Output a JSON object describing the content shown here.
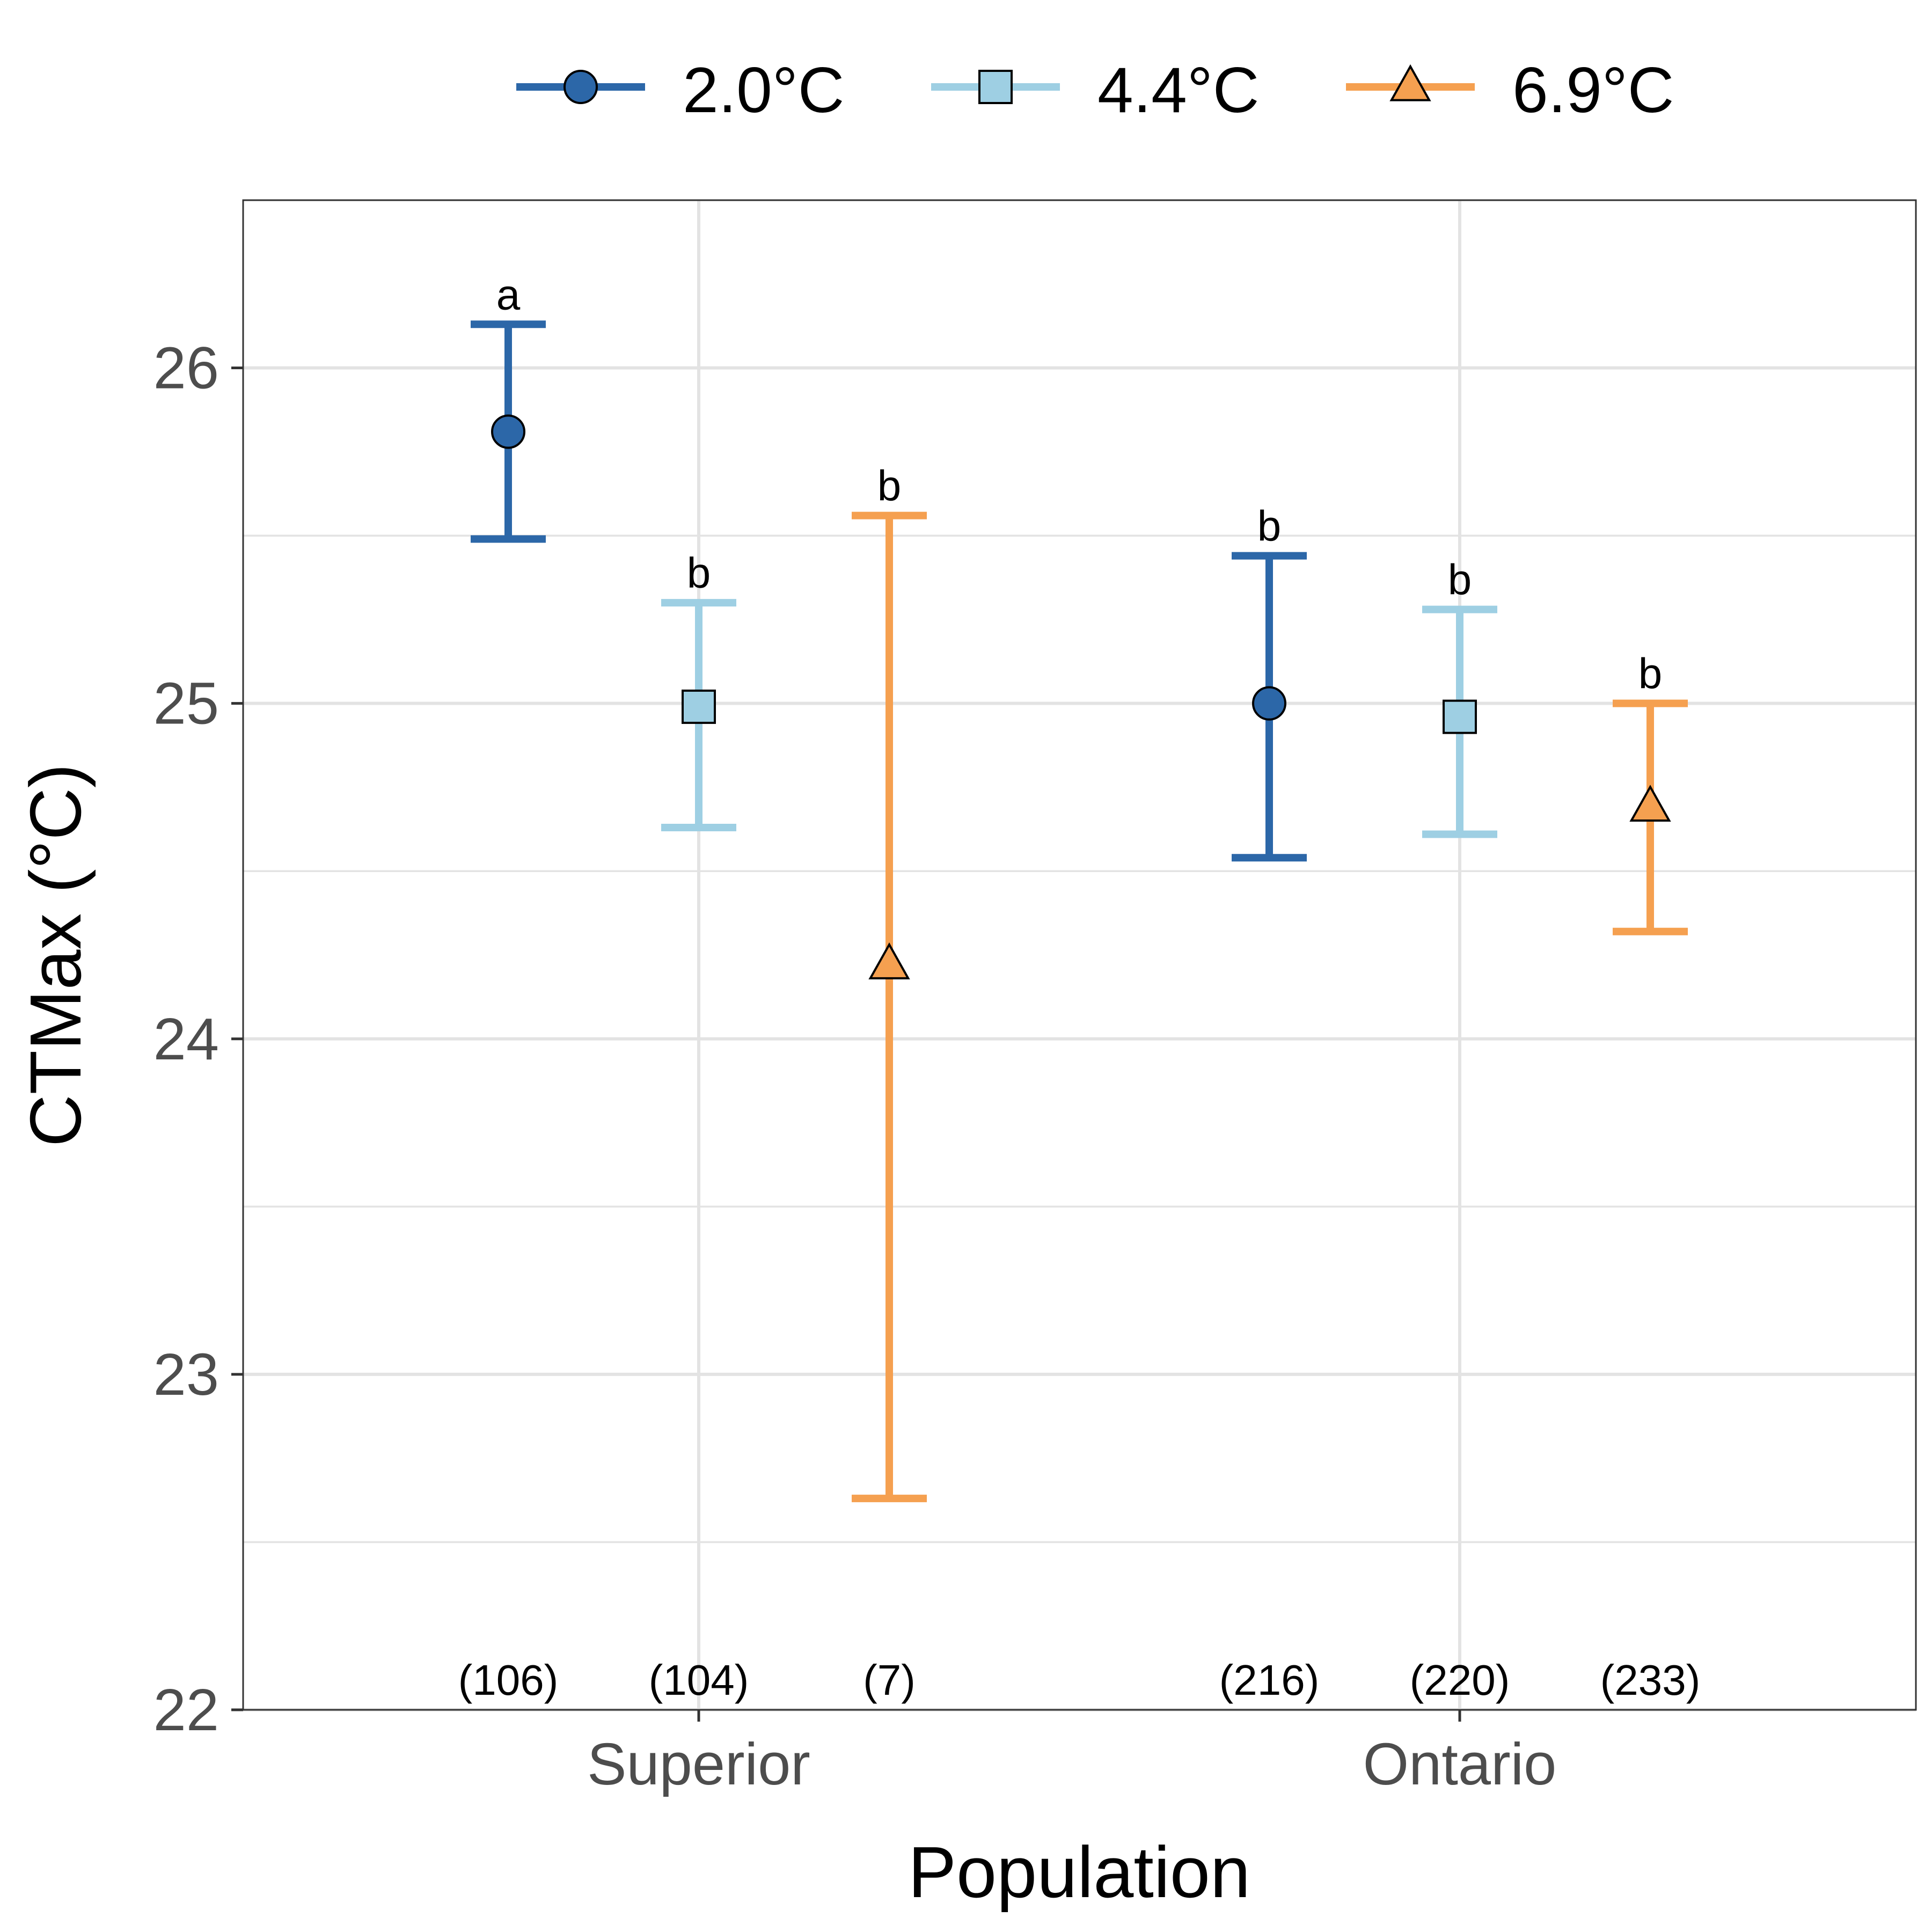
{
  "chart_data": {
    "type": "scatter",
    "subtype": "dot-errorbar",
    "xlabel": "Population",
    "ylabel": "CTMax (°C)",
    "ylim": [
      22,
      26.5
    ],
    "yticks": [
      "22",
      "23",
      "24",
      "25",
      "26"
    ],
    "categories": [
      "Superior",
      "Ontario"
    ],
    "grid": true,
    "legend_position": "top",
    "series": [
      {
        "name": "2.0°C",
        "color": "#2c67a8",
        "marker": "circle",
        "points": [
          {
            "category": "Superior",
            "mean": 25.81,
            "lower": 25.49,
            "upper": 26.13,
            "letter": "a",
            "n": "(106)"
          },
          {
            "category": "Ontario",
            "mean": 25.0,
            "lower": 24.54,
            "upper": 25.44,
            "letter": "b",
            "n": "(216)"
          }
        ]
      },
      {
        "name": "4.4°C",
        "color": "#9ecfe3",
        "marker": "square",
        "points": [
          {
            "category": "Superior",
            "mean": 24.99,
            "lower": 24.63,
            "upper": 25.3,
            "letter": "b",
            "n": "(104)"
          },
          {
            "category": "Ontario",
            "mean": 24.96,
            "lower": 24.61,
            "upper": 25.28,
            "letter": "b",
            "n": "(220)"
          }
        ]
      },
      {
        "name": "6.9°C",
        "color": "#f5a050",
        "marker": "triangle",
        "points": [
          {
            "category": "Superior",
            "mean": 24.22,
            "lower": 22.63,
            "upper": 25.56,
            "letter": "b",
            "n": "(7)"
          },
          {
            "category": "Ontario",
            "mean": 24.69,
            "lower": 24.32,
            "upper": 25.0,
            "letter": "b",
            "n": "(233)"
          }
        ]
      }
    ]
  }
}
